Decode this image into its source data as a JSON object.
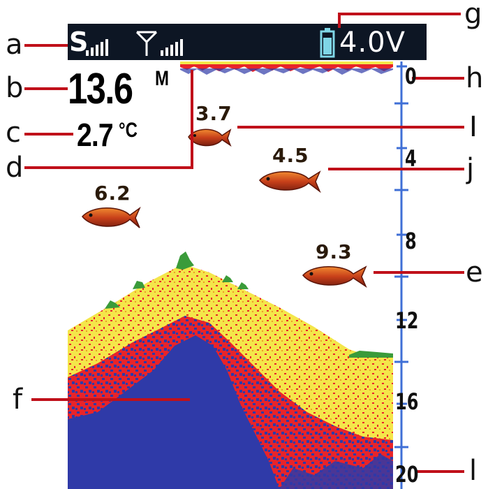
{
  "status_bar": {
    "sonar_symbol": "S",
    "battery_voltage": "4.0V"
  },
  "readouts": {
    "depth_value": "13.6",
    "depth_unit": "M",
    "temperature_value": "2.7",
    "temperature_unit": "°C"
  },
  "fish": [
    {
      "depth_label": "3.7"
    },
    {
      "depth_label": "4.5"
    },
    {
      "depth_label": "6.2"
    },
    {
      "depth_label": "9.3"
    }
  ],
  "depth_scale": {
    "labels": [
      "0",
      "4",
      "8",
      "12",
      "16",
      "20"
    ]
  },
  "callouts": {
    "a": "a",
    "b": "b",
    "c": "c",
    "d": "d",
    "e": "e",
    "f": "f",
    "g": "g",
    "h": "h",
    "i": "I",
    "j": "j",
    "l": "l"
  },
  "colors": {
    "screen_bar": "#0d1624",
    "water": "#ffffff",
    "strong_return": "#2f3aa8",
    "mid_return": "#e8242a",
    "weak_return": "#f4e64a",
    "vegetation": "#3a9b3a",
    "scale_line": "#3f6fd6",
    "callout_line": "#c0101a",
    "fish_body": "#c8401a"
  }
}
